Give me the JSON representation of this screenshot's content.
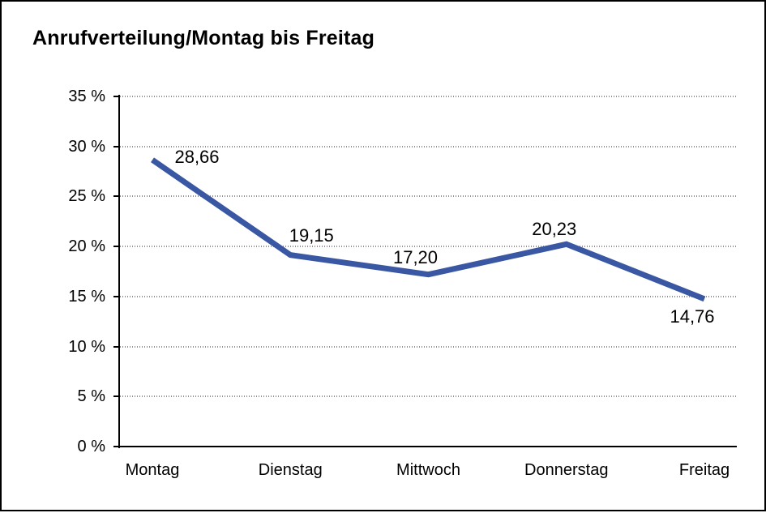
{
  "chart_data": {
    "type": "line",
    "title": "Anrufverteilung/Montag bis Freitag",
    "categories": [
      "Montag",
      "Dienstag",
      "Mittwoch",
      "Donnerstag",
      "Freitag"
    ],
    "series": [
      {
        "name": "Anrufverteilung",
        "values": [
          28.66,
          19.15,
          17.2,
          20.23,
          14.76
        ],
        "value_labels": [
          "28,66",
          "19,15",
          "17,20",
          "20,23",
          "14,76"
        ]
      }
    ],
    "xlabel": "",
    "ylabel": "",
    "ylim": [
      0,
      35
    ],
    "y_step": 5,
    "y_tick_labels": [
      "35 %",
      "30 %",
      "25 %",
      "20 %",
      "15 %",
      "10 %",
      "5 %",
      "0 %"
    ],
    "grid": "horizontal-dotted",
    "legend": "none",
    "colors": {
      "line": "#3A57A3",
      "axis": "#000000",
      "gridline": "#8f8f8f",
      "text": "#000000",
      "background": "#ffffff"
    }
  }
}
